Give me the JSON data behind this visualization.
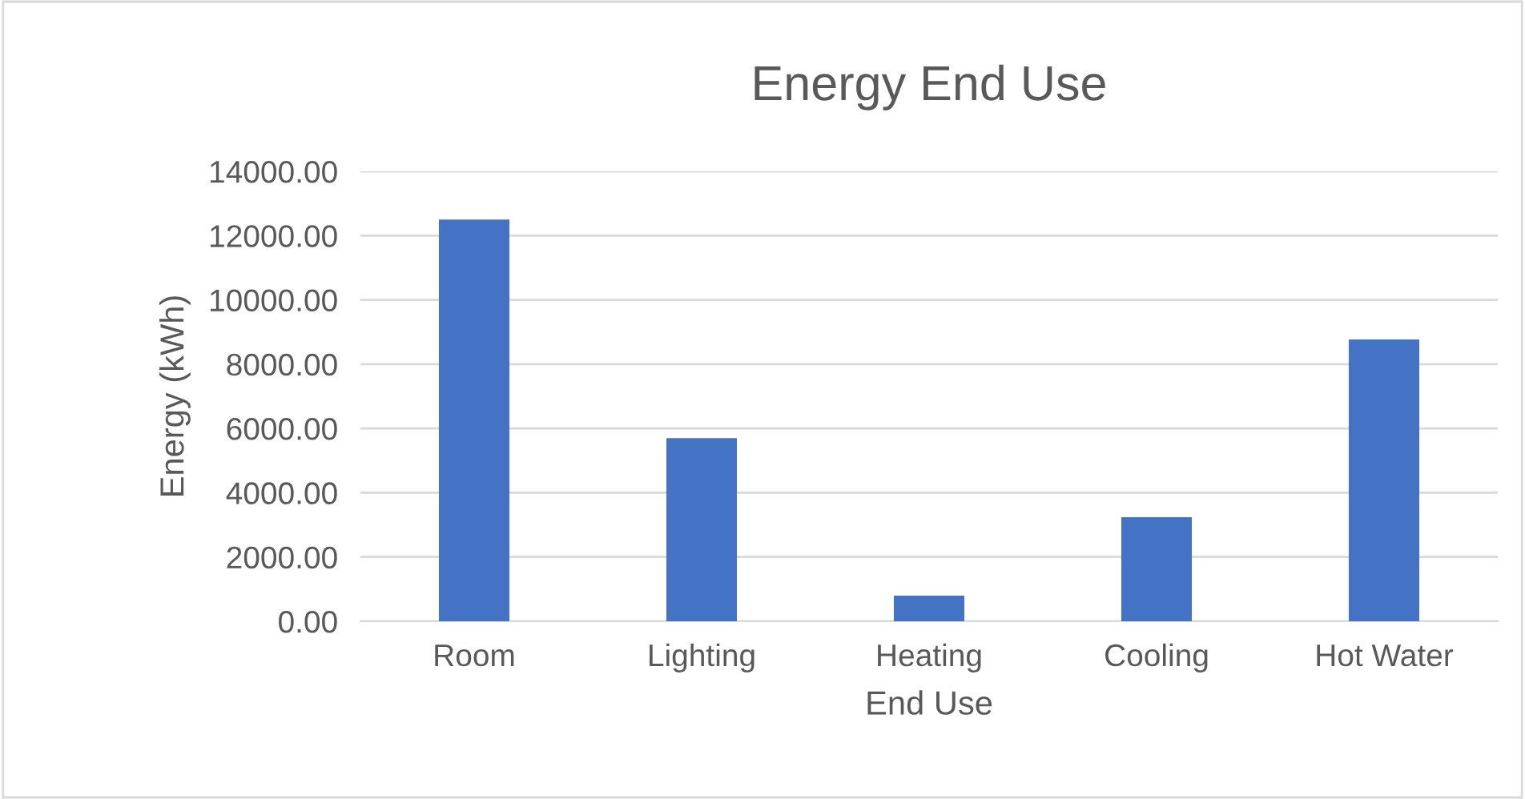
{
  "chart_data": {
    "type": "bar",
    "title": "Energy End Use",
    "xlabel": "End Use",
    "ylabel": "Energy (kWh)",
    "categories": [
      "Room",
      "Lighting",
      "Heating",
      "Cooling",
      "Hot Water"
    ],
    "values": [
      12500,
      5700,
      800,
      3240,
      8770
    ],
    "color": "#4472c4",
    "ylim": [
      0,
      14000
    ],
    "yticks": [
      {
        "value": 0,
        "label": "0.00"
      },
      {
        "value": 2000,
        "label": "2000.00"
      },
      {
        "value": 4000,
        "label": "4000.00"
      },
      {
        "value": 6000,
        "label": "6000.00"
      },
      {
        "value": 8000,
        "label": "8000.00"
      },
      {
        "value": 10000,
        "label": "10000.00"
      },
      {
        "value": 12000,
        "label": "12000.00"
      },
      {
        "value": 14000,
        "label": "14000.00"
      }
    ],
    "grid": "y",
    "legend": false
  }
}
